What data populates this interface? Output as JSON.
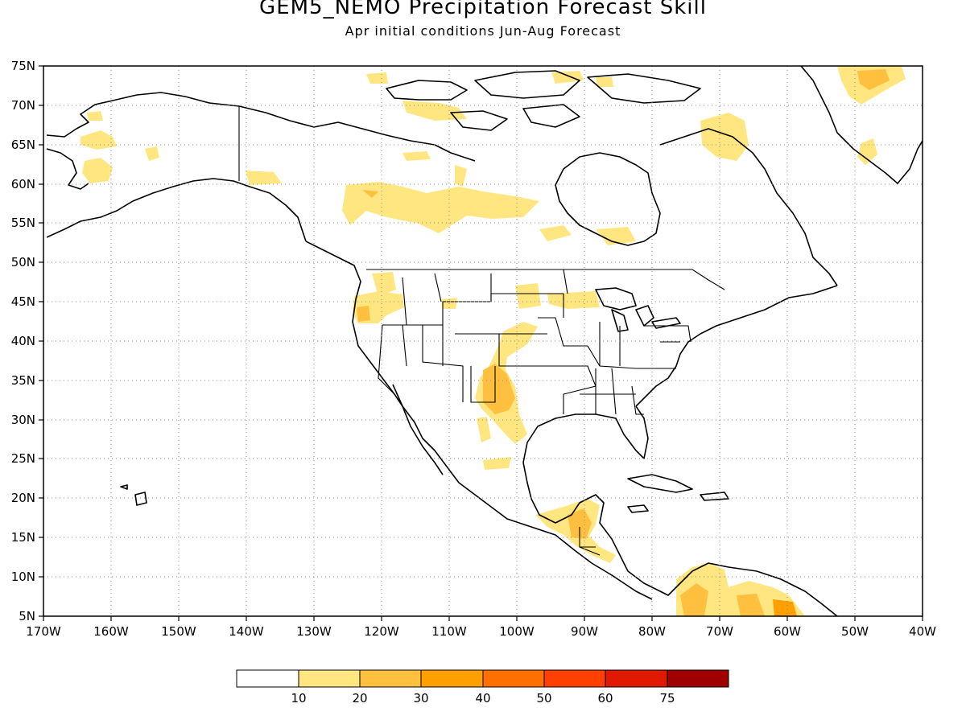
{
  "title": "GEM5_NEMO Precipitation Forecast Skill",
  "subtitle": "Apr initial conditions  Jun-Aug Forecast",
  "map": {
    "lat_labels": [
      "75N",
      "70N",
      "65N",
      "60N",
      "55N",
      "50N",
      "45N",
      "40N",
      "35N",
      "30N",
      "25N",
      "20N",
      "15N",
      "10N",
      "5N"
    ],
    "lon_labels": [
      "170W",
      "160W",
      "150W",
      "140W",
      "130W",
      "120W",
      "110W",
      "100W",
      "90W",
      "80W",
      "70W",
      "60W",
      "50W",
      "40W"
    ],
    "lon_range": [
      -170,
      -40
    ],
    "lat_range": [
      5,
      75
    ],
    "gridlines": "dotted",
    "fill_colors": [
      "#ffe680",
      "#ffc040",
      "#ffa000",
      "#ff7000",
      "#ff4000",
      "#e01a00",
      "#a00000"
    ]
  },
  "legend": {
    "labels": [
      "10",
      "20",
      "30",
      "40",
      "50",
      "60",
      "75"
    ],
    "colors": [
      "#ffffff",
      "#ffe680",
      "#ffc040",
      "#ffa000",
      "#ff7000",
      "#ff4000",
      "#e01a00",
      "#a00000"
    ]
  }
}
